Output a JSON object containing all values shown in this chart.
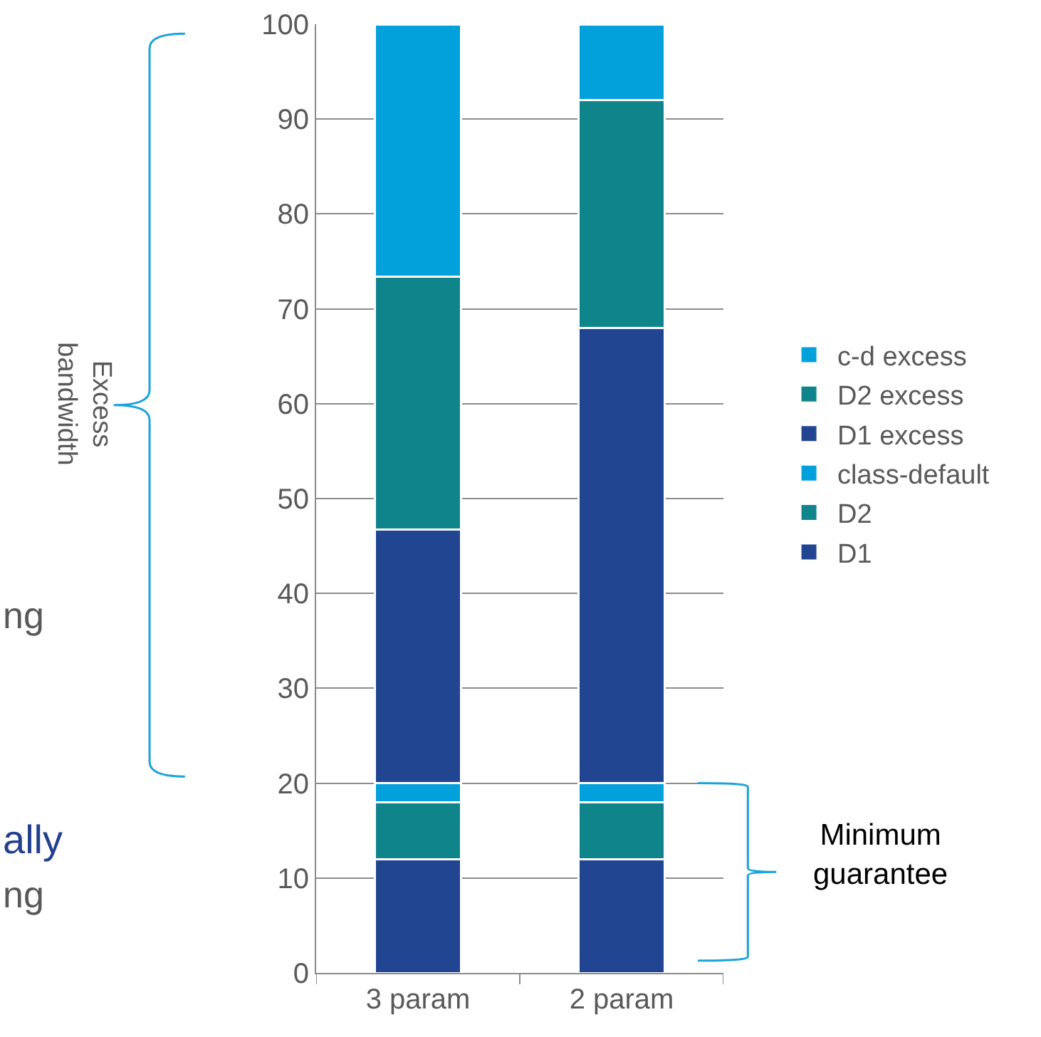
{
  "chart_data": {
    "type": "bar",
    "stacked": true,
    "categories": [
      "3 param",
      "2 param"
    ],
    "series": [
      {
        "name": "D1",
        "color": "#224591",
        "values": [
          12,
          12
        ]
      },
      {
        "name": "D2",
        "color": "#0f858b",
        "values": [
          6,
          6
        ]
      },
      {
        "name": "class-default",
        "color": "#03a1dc",
        "values": [
          2,
          2
        ]
      },
      {
        "name": "D1 excess",
        "color": "#224591",
        "values": [
          26.7,
          48
        ]
      },
      {
        "name": "D2 excess",
        "color": "#0f858b",
        "values": [
          26.7,
          24
        ]
      },
      {
        "name": "c-d excess",
        "color": "#03a1dc",
        "values": [
          26.6,
          8
        ]
      }
    ],
    "ylim": [
      0,
      100
    ],
    "yticks": [
      0,
      10,
      20,
      30,
      40,
      50,
      60,
      70,
      80,
      90,
      100
    ],
    "grid": "y",
    "legend": "right",
    "annotations": [
      "Excess\nbandwidth",
      "Minimum\nguarantee",
      "ng",
      "ally",
      "ng"
    ]
  }
}
